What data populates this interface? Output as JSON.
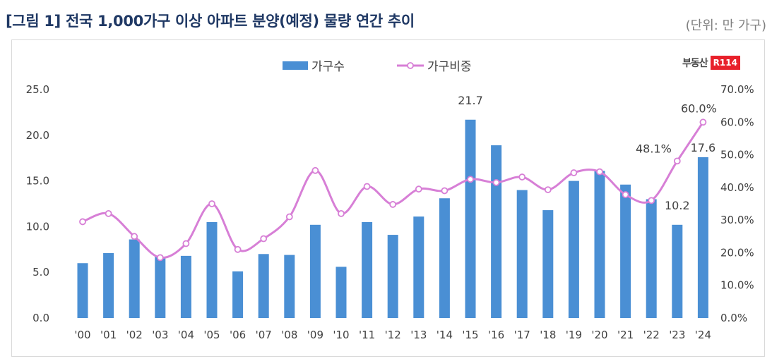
{
  "header": {
    "title": "[그림 1] 전국 1,000가구 이상 아파트 분양(예정) 물량 연간 추이",
    "unit": "(단위: 만 가구)"
  },
  "logo": {
    "text": "부동산",
    "badge": "R114"
  },
  "colors": {
    "bar": "#4a8fd4",
    "line": "#d77fd6",
    "title": "#1f3864"
  },
  "chart_data": {
    "type": "bar",
    "categories": [
      "'00",
      "'01",
      "'02",
      "'03",
      "'04",
      "'05",
      "'06",
      "'07",
      "'08",
      "'09",
      "'10",
      "'11",
      "'12",
      "'13",
      "'14",
      "'15",
      "'16",
      "'17",
      "'18",
      "'19",
      "'20",
      "'21",
      "'22",
      "'23",
      "'24"
    ],
    "series": [
      {
        "name": "가구수",
        "type": "bar",
        "axis": "left",
        "values": [
          6.0,
          7.1,
          8.6,
          6.7,
          6.8,
          10.5,
          5.1,
          7.0,
          6.9,
          10.2,
          5.6,
          10.5,
          9.1,
          11.1,
          13.1,
          21.7,
          18.9,
          14.0,
          11.8,
          15.0,
          16.1,
          14.6,
          13.0,
          10.2,
          17.6
        ]
      },
      {
        "name": "가구비중",
        "type": "line",
        "axis": "right",
        "values": [
          29.5,
          32.0,
          25.0,
          18.5,
          22.8,
          35.0,
          21.0,
          24.3,
          31.0,
          45.2,
          32.0,
          40.3,
          34.8,
          39.5,
          39.0,
          42.5,
          41.5,
          43.2,
          39.3,
          44.5,
          44.8,
          37.8,
          36.0,
          48.1,
          60.0
        ]
      }
    ],
    "left_axis": {
      "min": 0,
      "max": 25,
      "ticks": [
        "0.0",
        "5.0",
        "10.0",
        "15.0",
        "20.0",
        "25.0"
      ]
    },
    "right_axis": {
      "min": 0,
      "max": 70,
      "ticks": [
        "0.0%",
        "10.0%",
        "20.0%",
        "30.0%",
        "40.0%",
        "50.0%",
        "60.0%",
        "70.0%"
      ]
    },
    "data_labels": [
      {
        "series": 0,
        "index": 15,
        "text": "21.7"
      },
      {
        "series": 0,
        "index": 23,
        "text": "10.2"
      },
      {
        "series": 0,
        "index": 24,
        "text": "17.6"
      },
      {
        "series": 1,
        "index": 23,
        "text": "48.1%"
      },
      {
        "series": 1,
        "index": 24,
        "text": "60.0%"
      }
    ],
    "legend": "top-center",
    "grid": false
  }
}
